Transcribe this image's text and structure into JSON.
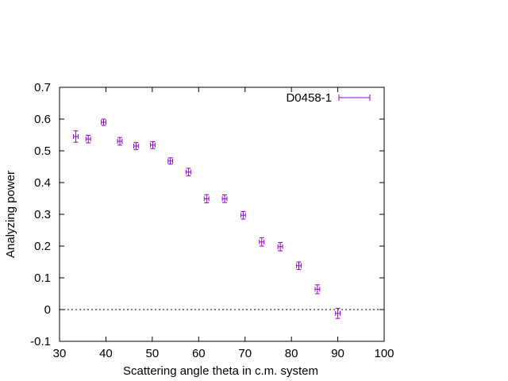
{
  "chart_data": {
    "type": "scatter",
    "title": "",
    "xlabel": "Scattering angle theta in c.m. system",
    "ylabel": "Analyzing power",
    "xlim": [
      30,
      100
    ],
    "ylim": [
      -0.1,
      0.7
    ],
    "xticks": [
      30,
      40,
      50,
      60,
      70,
      80,
      90,
      100
    ],
    "xtick_labels": [
      "30",
      "40",
      "50",
      "60",
      "70",
      "80",
      "90",
      "100"
    ],
    "yticks": [
      -0.1,
      0,
      0.1,
      0.2,
      0.3,
      0.4,
      0.5,
      0.6,
      0.7
    ],
    "ytick_labels": [
      "-0.1",
      "0",
      "0.1",
      "0.2",
      "0.3",
      "0.4",
      "0.5",
      "0.6",
      "0.7"
    ],
    "grid": false,
    "zero_line": true,
    "legend_position": "top-right",
    "error_bars": "x and y",
    "series": [
      {
        "name": "D0458-1",
        "color": "#9400d3",
        "x": [
          33.5,
          36.2,
          39.5,
          43.0,
          46.5,
          50.1,
          53.9,
          57.8,
          61.7,
          65.6,
          69.6,
          73.6,
          77.6,
          81.6,
          85.6,
          90.0
        ],
        "y": [
          0.545,
          0.537,
          0.59,
          0.53,
          0.515,
          0.518,
          0.468,
          0.433,
          0.349,
          0.349,
          0.297,
          0.213,
          0.198,
          0.138,
          0.064,
          -0.012
        ],
        "xerr": [
          0.5,
          0.5,
          0.5,
          0.5,
          0.5,
          0.5,
          0.5,
          0.5,
          0.5,
          0.5,
          0.5,
          0.5,
          0.5,
          0.5,
          0.5,
          0.5
        ],
        "yerr": [
          0.018,
          0.012,
          0.01,
          0.012,
          0.011,
          0.011,
          0.01,
          0.012,
          0.013,
          0.012,
          0.012,
          0.013,
          0.013,
          0.012,
          0.014,
          0.016
        ]
      }
    ]
  }
}
